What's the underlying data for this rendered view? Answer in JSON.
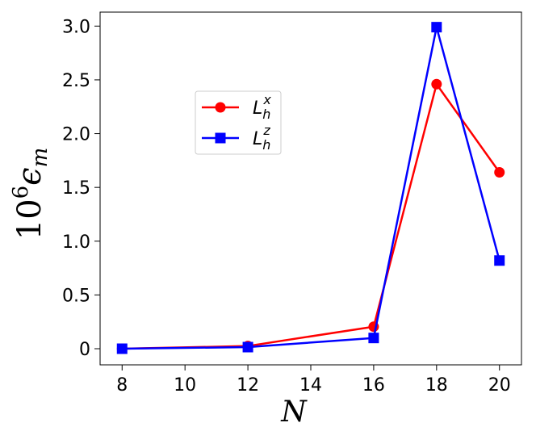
{
  "chart_data": {
    "type": "line",
    "title": "",
    "xlabel": "N",
    "ylabel": {
      "base": "10",
      "exp": "6",
      "symbol": "ϵ",
      "sub": "m"
    },
    "xlim": [
      7.3,
      20.7
    ],
    "ylim": [
      -0.15,
      3.13
    ],
    "x_ticks": [
      8,
      10,
      12,
      14,
      16,
      18,
      20
    ],
    "y_ticks": [
      0,
      0.5,
      1.0,
      1.5,
      2.0,
      2.5,
      3.0
    ],
    "y_tick_labels": [
      "0",
      "0.5",
      "1.0",
      "1.5",
      "2.0",
      "2.5",
      "3.0"
    ],
    "legend_position": "upper-left-center",
    "series": [
      {
        "name": {
          "base": "L",
          "sub": "h",
          "sup": "x"
        },
        "color": "#ff0000",
        "marker": "circle",
        "x": [
          8,
          12,
          16,
          18,
          20
        ],
        "y": [
          0.0,
          0.025,
          0.205,
          2.46,
          1.64
        ]
      },
      {
        "name": {
          "base": "L",
          "sub": "h",
          "sup": "z"
        },
        "color": "#0000ff",
        "marker": "square",
        "x": [
          8,
          12,
          16,
          18,
          20
        ],
        "y": [
          0.0,
          0.015,
          0.1,
          2.99,
          0.82
        ]
      }
    ]
  }
}
